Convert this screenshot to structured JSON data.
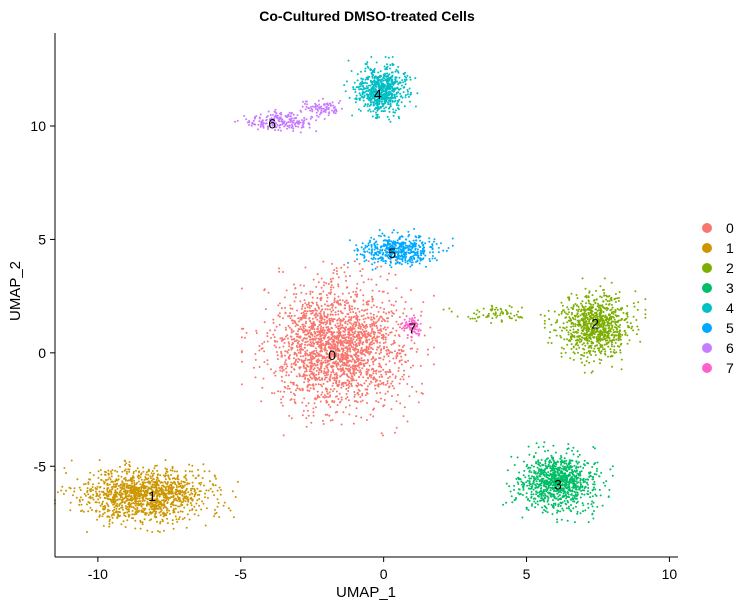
{
  "chart_data": {
    "type": "scatter",
    "title": "Co-Cultured DMSO-treated Cells",
    "xlabel": "UMAP_1",
    "ylabel": "UMAP_2",
    "xlim": [
      -11.5,
      10.3
    ],
    "ylim": [
      -9.0,
      14.1
    ],
    "xticks": [
      -10,
      -5,
      0,
      5,
      10
    ],
    "yticks": [
      -5,
      0,
      5,
      10
    ],
    "grid": false,
    "legend_position": "right",
    "series": [
      {
        "name": "0",
        "color": "#F8766D",
        "label_at": [
          -1.8,
          -0.1
        ],
        "clusters": [
          [
            -1.6,
            0.2,
            2.1,
            2.4,
            2200
          ]
        ]
      },
      {
        "name": "1",
        "color": "#CD9600",
        "label_at": [
          -8.1,
          -6.3
        ],
        "clusters": [
          [
            -8.3,
            -6.3,
            2.0,
            1.0,
            1300
          ]
        ]
      },
      {
        "name": "2",
        "color": "#7CAE00",
        "label_at": [
          7.4,
          1.3
        ],
        "clusters": [
          [
            7.4,
            1.2,
            1.1,
            1.3,
            900
          ],
          [
            3.8,
            1.7,
            1.3,
            0.35,
            70
          ]
        ]
      },
      {
        "name": "3",
        "color": "#00BE67",
        "label_at": [
          6.1,
          -5.8
        ],
        "clusters": [
          [
            6.1,
            -5.7,
            1.2,
            1.1,
            1000
          ]
        ]
      },
      {
        "name": "4",
        "color": "#00BFC4",
        "label_at": [
          -0.2,
          11.4
        ],
        "clusters": [
          [
            -0.1,
            11.6,
            0.8,
            0.9,
            700
          ]
        ]
      },
      {
        "name": "5",
        "color": "#00A9FF",
        "label_at": [
          0.3,
          4.4
        ],
        "clusters": [
          [
            0.5,
            4.5,
            1.2,
            0.6,
            500
          ]
        ]
      },
      {
        "name": "6",
        "color": "#C77CFF",
        "label_at": [
          -3.9,
          10.1
        ],
        "clusters": [
          [
            -3.6,
            10.2,
            1.0,
            0.35,
            200
          ],
          [
            -2.1,
            10.8,
            0.6,
            0.25,
            90
          ]
        ]
      },
      {
        "name": "7",
        "color": "#FF61CC",
        "label_at": [
          1.0,
          1.1
        ],
        "clusters": [
          [
            1.0,
            1.2,
            0.3,
            0.35,
            80
          ]
        ]
      }
    ]
  }
}
